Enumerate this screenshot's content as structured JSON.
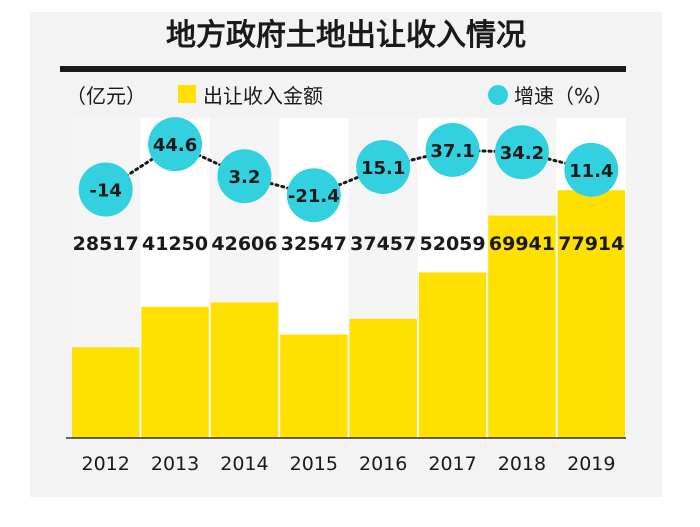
{
  "chart_data": {
    "type": "bar",
    "title": "地方政府土地出让收入情况",
    "categories": [
      "2012",
      "2013",
      "2014",
      "2015",
      "2016",
      "2017",
      "2018",
      "2019"
    ],
    "series": [
      {
        "name": "出让收入金额",
        "type": "bar",
        "unit_label": "（亿元）",
        "values": [
          28517,
          41250,
          42606,
          32547,
          37457,
          52059,
          69941,
          77914
        ],
        "value_labels": [
          "28517",
          "41250",
          "42606",
          "32547",
          "37457",
          "52059",
          "69941",
          "77914"
        ],
        "color": "#FFE000"
      },
      {
        "name": "增速",
        "type": "line",
        "unit_label": "（%）",
        "values": [
          -14,
          44.6,
          3.2,
          -21.4,
          15.1,
          37.1,
          34.2,
          11.4
        ],
        "value_labels": [
          "-14",
          "44.6",
          "3.2",
          "-21.4",
          "15.1",
          "37.1",
          "34.2",
          "11.4"
        ],
        "color": "#33D1E0",
        "ylim": [
          -25,
          50
        ]
      }
    ],
    "ylim": [
      0,
      100000
    ],
    "grid": false,
    "legend": "top"
  },
  "legend": {
    "unit_left": "（亿元）",
    "bar_label": "出让收入金额",
    "dot_label": "增速（%）"
  },
  "colors": {
    "bar": "#FFE000",
    "bubble": "#33D1E0",
    "text": "#1a1a1a",
    "axis": "#333333",
    "panel": "#f5f5f5",
    "panel_alt": "#ffffff"
  }
}
